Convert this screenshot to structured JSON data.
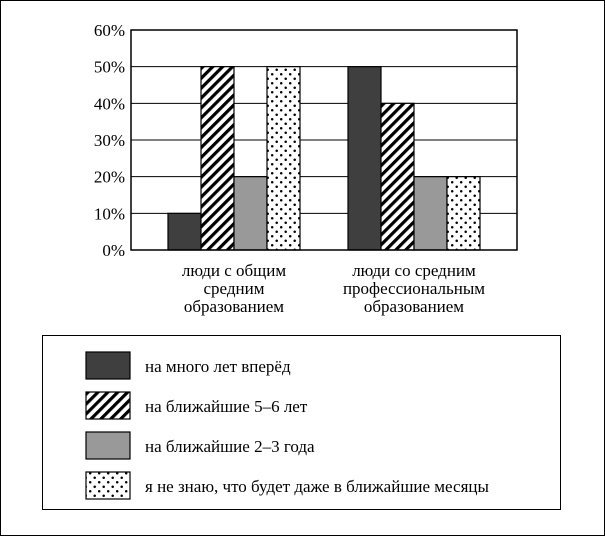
{
  "chart_data": {
    "type": "bar",
    "categories": [
      [
        "люди с общим",
        "средним",
        "образованием"
      ],
      [
        "люди со средним",
        "профессиональным",
        "образованием"
      ]
    ],
    "series": [
      {
        "name": "на много лет вперёд",
        "values": [
          10,
          50
        ],
        "fill": "solid",
        "color": "#3f3f3f"
      },
      {
        "name": "на ближайшие 5–6 лет",
        "values": [
          50,
          40
        ],
        "fill": "hatch",
        "color": "#000000"
      },
      {
        "name": "на ближайшие 2–3 года",
        "values": [
          20,
          20
        ],
        "fill": "solid",
        "color": "#999999"
      },
      {
        "name": "я не знаю, что будет даже в ближайшие месяцы",
        "values": [
          50,
          20
        ],
        "fill": "dots",
        "color": "#000000"
      }
    ],
    "ylim": [
      0,
      60
    ],
    "yticks": [
      0,
      10,
      20,
      30,
      40,
      50,
      60
    ],
    "ytick_labels": [
      "0%",
      "10%",
      "20%",
      "30%",
      "40%",
      "50%",
      "60%"
    ],
    "grid": "horizontal",
    "legend_position": "bottom",
    "title": "",
    "xlabel": "",
    "ylabel": ""
  }
}
